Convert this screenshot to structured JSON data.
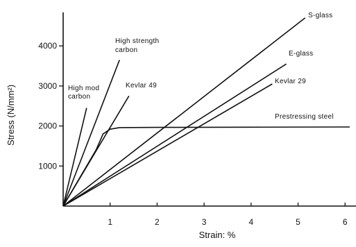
{
  "chart_data": {
    "type": "line",
    "title": "",
    "xlabel": "Strain: %",
    "ylabel": "Stress (N/mm²)",
    "xlim": [
      0,
      6.4
    ],
    "ylim": [
      0,
      4700
    ],
    "x_ticks": [
      1,
      2,
      3,
      4,
      5,
      6
    ],
    "y_ticks": [
      1000,
      2000,
      3000,
      4000
    ],
    "grid": false,
    "legend": "none",
    "series": [
      {
        "name": "High mod carbon",
        "label_lines": [
          "High mod",
          "carbon"
        ],
        "points": [
          [
            0,
            0
          ],
          [
            0.5,
            2450
          ]
        ]
      },
      {
        "name": "High strength carbon",
        "label_lines": [
          "High strength",
          "carbon"
        ],
        "points": [
          [
            0,
            0
          ],
          [
            1.2,
            3650
          ]
        ]
      },
      {
        "name": "Kevlar 49",
        "label_lines": [
          "Kevlar 49"
        ],
        "points": [
          [
            0,
            0
          ],
          [
            1.4,
            2750
          ]
        ]
      },
      {
        "name": "S-glass",
        "label_lines": [
          "S-glass"
        ],
        "points": [
          [
            0,
            0
          ],
          [
            5.15,
            4700
          ]
        ]
      },
      {
        "name": "E-glass",
        "label_lines": [
          "E-glass"
        ],
        "points": [
          [
            0,
            0
          ],
          [
            4.75,
            3550
          ]
        ]
      },
      {
        "name": "Kevlar 29",
        "label_lines": [
          "Kevlar 29"
        ],
        "points": [
          [
            0,
            0
          ],
          [
            4.45,
            3050
          ]
        ]
      },
      {
        "name": "Prestressing steel",
        "label_lines": [
          "Prestressing steel"
        ],
        "points": [
          [
            0,
            0
          ],
          [
            0.7,
            1400
          ],
          [
            0.85,
            1800
          ],
          [
            1.0,
            1920
          ],
          [
            1.2,
            1960
          ],
          [
            2.0,
            1965
          ],
          [
            4.0,
            1970
          ],
          [
            6.1,
            1975
          ]
        ]
      }
    ]
  }
}
